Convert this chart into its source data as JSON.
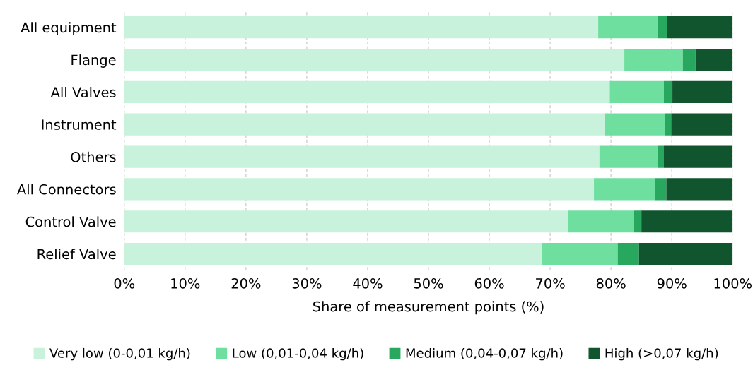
{
  "chart_data": {
    "type": "bar",
    "orientation": "horizontal",
    "stacked": true,
    "categories": [
      "All equipment",
      "Flange",
      "All Valves",
      "Instrument",
      "Others",
      "All Connectors",
      "Control Valve",
      "Relief Valve"
    ],
    "series": [
      {
        "name": "Very low (0-0,01 kg/h)",
        "color": "#c8f2dc",
        "values": [
          77.9,
          82.2,
          79.8,
          79.0,
          78.1,
          77.2,
          73.0,
          68.7
        ]
      },
      {
        "name": "Low (0,01-0,04 kg/h)",
        "color": "#6fdf9f",
        "values": [
          9.8,
          9.6,
          8.9,
          9.9,
          9.6,
          10.0,
          10.7,
          12.4
        ]
      },
      {
        "name": "Medium (0,04-0,07 kg/h)",
        "color": "#27a85e",
        "values": [
          1.5,
          2.1,
          1.4,
          1.0,
          1.0,
          1.9,
          1.3,
          3.5
        ]
      },
      {
        "name": "High (>0,07 kg/h)",
        "color": "#10552e",
        "values": [
          10.8,
          6.1,
          9.9,
          10.1,
          11.3,
          10.9,
          15.0,
          15.4
        ]
      }
    ],
    "xlabel": "Share of measurement points (%)",
    "xlim": [
      0,
      100
    ],
    "xticks": [
      {
        "value": 0,
        "label": "0%"
      },
      {
        "value": 10,
        "label": "10%"
      },
      {
        "value": 20,
        "label": "20%"
      },
      {
        "value": 30,
        "label": "30%"
      },
      {
        "value": 40,
        "label": "40%"
      },
      {
        "value": 50,
        "label": "50%"
      },
      {
        "value": 60,
        "label": "60%"
      },
      {
        "value": 70,
        "label": "70%"
      },
      {
        "value": 80,
        "label": "80%"
      },
      {
        "value": 90,
        "label": "90%"
      },
      {
        "value": 100,
        "label": "100%"
      }
    ],
    "grid": "x",
    "legend": "bottom"
  }
}
